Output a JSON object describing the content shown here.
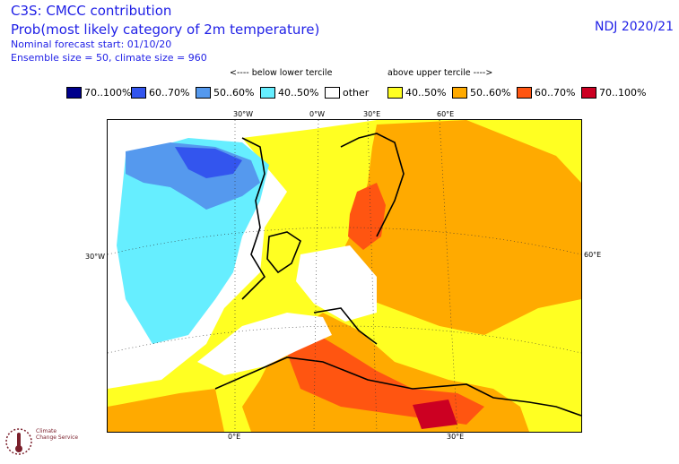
{
  "header": {
    "title": "C3S: CMCC contribution",
    "subtitle": "Prob(most likely category of 2m temperature)",
    "forecast_start": "Nominal forecast start: 01/10/20",
    "ensemble": "Ensemble size = 50, climate size = 960",
    "period": "NDJ 2020/21"
  },
  "legend": {
    "below_caption": "<---- below lower tercile",
    "above_caption": "above upper tercile ---->",
    "items": [
      {
        "label": "70..100%",
        "color": "#00008c"
      },
      {
        "label": "60..70%",
        "color": "#3355ee"
      },
      {
        "label": "50..60%",
        "color": "#5599ee"
      },
      {
        "label": "40..50%",
        "color": "#66eeff"
      },
      {
        "label": "other",
        "color": "#ffffff"
      },
      {
        "label": "40..50%",
        "color": "#ffff22"
      },
      {
        "label": "50..60%",
        "color": "#ffaa00"
      },
      {
        "label": "60..70%",
        "color": "#ff5511"
      },
      {
        "label": "70..100%",
        "color": "#cc0022"
      }
    ]
  },
  "map": {
    "top_labels": [
      "30°W",
      "0°W",
      "30°E",
      "60°E"
    ],
    "left_label": "30°W",
    "right_label": "60°E",
    "bottom_labels": [
      "0°E",
      "30°E"
    ]
  },
  "logo": {
    "line1": "Climate",
    "line2": "Change Service"
  }
}
